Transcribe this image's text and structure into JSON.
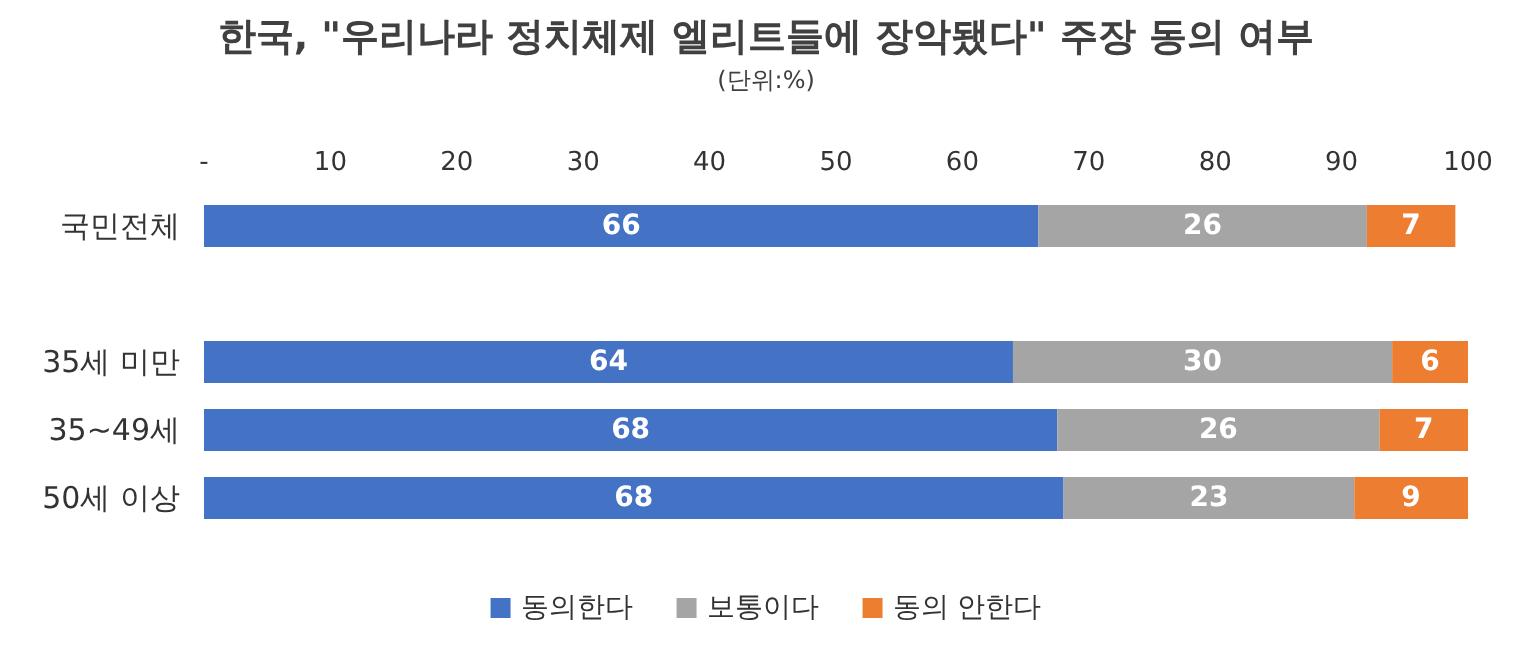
{
  "chart_data": {
    "type": "bar",
    "orientation": "horizontal",
    "stacked": true,
    "title": "한국, \"우리나라 정치체제 엘리트들에 장악됐다\" 주장 동의 여부",
    "subtitle": "(단위:%)",
    "categories": [
      "국민전체",
      null,
      "35세 미만",
      "35~49세",
      "50세 이상"
    ],
    "series": [
      {
        "name": "동의한다",
        "color": "#4472c4",
        "values": [
          66,
          null,
          64,
          67.5,
          68
        ],
        "value_labels": [
          "66",
          null,
          "64",
          "68",
          "68"
        ]
      },
      {
        "name": "보통이다",
        "color": "#a5a5a5",
        "values": [
          26,
          null,
          30,
          25.5,
          23
        ],
        "value_labels": [
          "26",
          null,
          "30",
          "26",
          "23"
        ]
      },
      {
        "name": "동의 안한다",
        "color": "#ed7d31",
        "values": [
          7,
          null,
          6,
          7,
          9
        ],
        "value_labels": [
          "7",
          null,
          "6",
          "7",
          "9"
        ]
      }
    ],
    "xlim": [
      0,
      100
    ],
    "xticks": [
      {
        "value": 0,
        "label": "-"
      },
      10,
      20,
      30,
      40,
      50,
      60,
      70,
      80,
      90,
      100
    ],
    "grid": false,
    "legend": "bottom"
  }
}
